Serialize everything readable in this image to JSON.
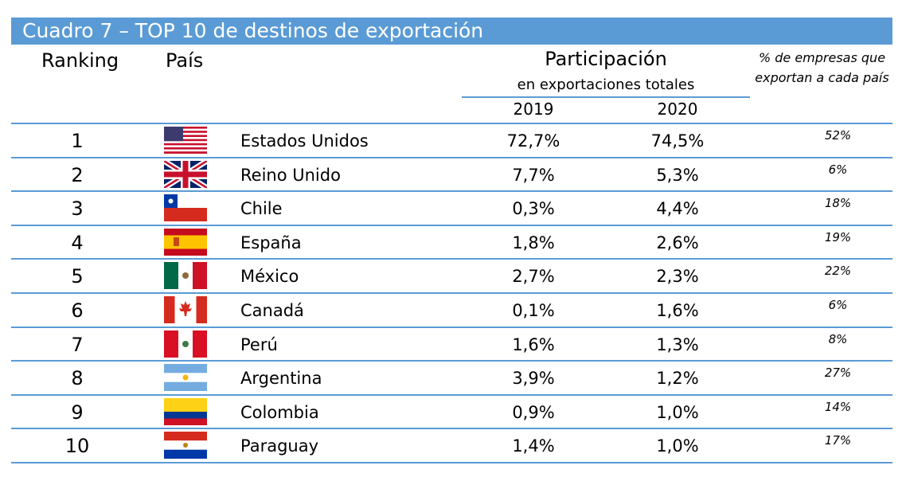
{
  "title": "Cuadro 7 – TOP 10 de destinos de exportación",
  "headers": {
    "ranking": "Ranking",
    "pais": "País",
    "participacion": "Participación",
    "participacion_sub": "en exportaciones totales",
    "year1": "2019",
    "year2": "2020",
    "pct_empresas": "% de empresas que exportan a cada país"
  },
  "rows": [
    {
      "rank": "1",
      "country": "Estados Unidos",
      "flag": "usa-flag-icon",
      "y2019": "72,7%",
      "y2020": "74,5%",
      "pct": "52%"
    },
    {
      "rank": "2",
      "country": "Reino Unido",
      "flag": "uk-flag-icon",
      "y2019": "7,7%",
      "y2020": "5,3%",
      "pct": "6%"
    },
    {
      "rank": "3",
      "country": "Chile",
      "flag": "chile-flag-icon",
      "y2019": "0,3%",
      "y2020": "4,4%",
      "pct": "18%"
    },
    {
      "rank": "4",
      "country": "España",
      "flag": "spain-flag-icon",
      "y2019": "1,8%",
      "y2020": "2,6%",
      "pct": "19%"
    },
    {
      "rank": "5",
      "country": "México",
      "flag": "mexico-flag-icon",
      "y2019": "2,7%",
      "y2020": "2,3%",
      "pct": "22%"
    },
    {
      "rank": "6",
      "country": "Canadá",
      "flag": "canada-flag-icon",
      "y2019": "0,1%",
      "y2020": "1,6%",
      "pct": "6%"
    },
    {
      "rank": "7",
      "country": "Perú",
      "flag": "peru-flag-icon",
      "y2019": "1,6%",
      "y2020": "1,3%",
      "pct": "8%"
    },
    {
      "rank": "8",
      "country": "Argentina",
      "flag": "argentina-flag-icon",
      "y2019": "3,9%",
      "y2020": "1,2%",
      "pct": "27%"
    },
    {
      "rank": "9",
      "country": "Colombia",
      "flag": "colombia-flag-icon",
      "y2019": "0,9%",
      "y2020": "1,0%",
      "pct": "14%"
    },
    {
      "rank": "10",
      "country": "Paraguay",
      "flag": "paraguay-flag-icon",
      "y2019": "1,4%",
      "y2020": "1,0%",
      "pct": "17%"
    }
  ],
  "colors": {
    "accent": "#5b9bd5"
  }
}
